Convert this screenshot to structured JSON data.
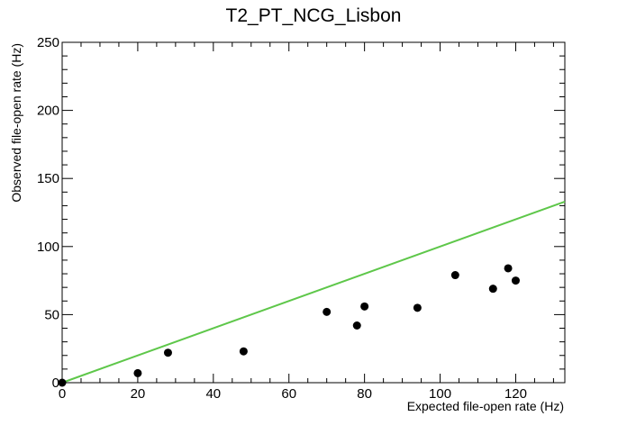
{
  "chart_data": {
    "type": "scatter",
    "title": "T2_PT_NCG_Lisbon",
    "xlabel": "Expected file-open rate (Hz)",
    "ylabel": "Observed file-open rate (Hz)",
    "xlim": [
      0,
      133
    ],
    "ylim": [
      0,
      250
    ],
    "x_ticks": [
      0,
      20,
      40,
      60,
      80,
      100,
      120
    ],
    "y_ticks": [
      0,
      50,
      100,
      150,
      200,
      250
    ],
    "grid": false,
    "points": [
      {
        "x": 0,
        "y": 0
      },
      {
        "x": 20,
        "y": 7
      },
      {
        "x": 28,
        "y": 22
      },
      {
        "x": 48,
        "y": 23
      },
      {
        "x": 70,
        "y": 52
      },
      {
        "x": 78,
        "y": 42
      },
      {
        "x": 80,
        "y": 56
      },
      {
        "x": 94,
        "y": 55
      },
      {
        "x": 104,
        "y": 79
      },
      {
        "x": 114,
        "y": 69
      },
      {
        "x": 118,
        "y": 84
      },
      {
        "x": 120,
        "y": 75
      }
    ],
    "reference_line": {
      "x": [
        0,
        133
      ],
      "y": [
        0,
        133
      ],
      "color": "#5ec74a"
    },
    "marker_color": "#000000"
  }
}
